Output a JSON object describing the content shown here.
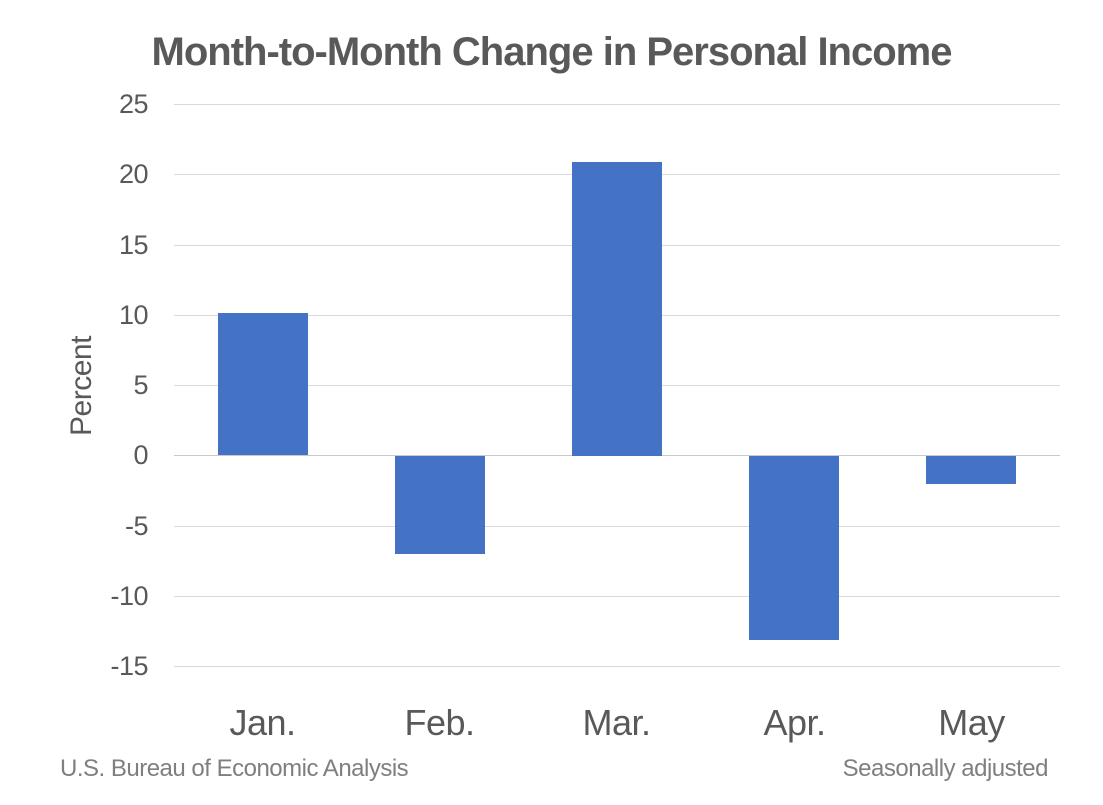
{
  "chart_data": {
    "type": "bar",
    "title": "Month-to-Month Change in Personal Income",
    "ylabel": "Percent",
    "xlabel": "",
    "categories": [
      "Jan.",
      "Feb.",
      "Mar.",
      "Apr.",
      "May"
    ],
    "values": [
      10.1,
      -7.0,
      20.9,
      -13.1,
      -2.0
    ],
    "ylim": [
      -15,
      25
    ],
    "yticks": [
      25,
      20,
      15,
      10,
      5,
      0,
      -5,
      -10,
      -15
    ],
    "grid": true,
    "legend": "none",
    "colors": {
      "bar": "#4472C4",
      "gridline": "#D9D9D9",
      "zero_line": "#C9C9C9",
      "text": "#595959",
      "footer_text": "#7F7F7F",
      "background": "#FFFFFF"
    }
  },
  "footer": {
    "left": "U.S. Bureau of Economic Analysis",
    "right": "Seasonally adjusted"
  }
}
